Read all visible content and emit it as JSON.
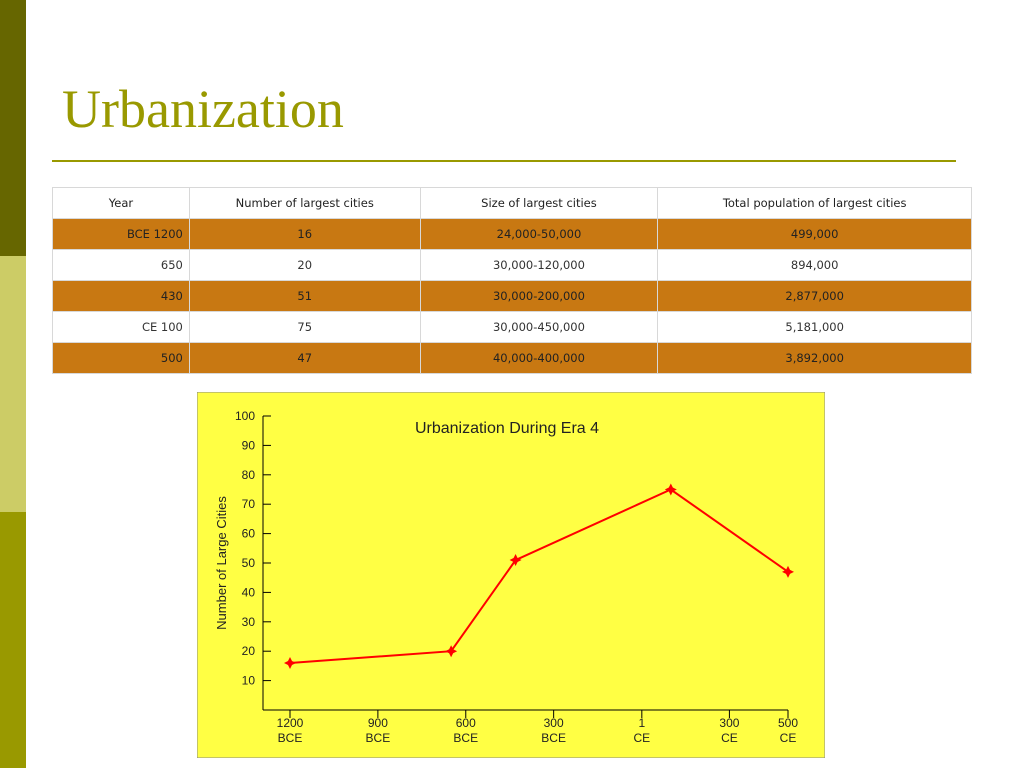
{
  "slide": {
    "title": "Urbanization",
    "accent": "#999900",
    "row_highlight_color": "#c87812"
  },
  "table": {
    "headers": [
      "Year",
      "Number of largest cities",
      "Size of largest cities",
      "Total population of largest cities"
    ],
    "rows": [
      [
        "BCE 1200",
        "16",
        "24,000-50,000",
        "499,000"
      ],
      [
        "650",
        "20",
        "30,000-120,000",
        "894,000"
      ],
      [
        "430",
        "51",
        "30,000-200,000",
        "2,877,000"
      ],
      [
        "CE 100",
        "75",
        "30,000-450,000",
        "5,181,000"
      ],
      [
        "500",
        "47",
        "40,000-400,000",
        "3,892,000"
      ]
    ]
  },
  "chart_data": {
    "type": "line",
    "title": "Urbanization During Era 4",
    "xlabel": "",
    "ylabel": "Number of Large Cities",
    "background": "#ffff44",
    "line_color": "#ff0000",
    "ylim": [
      0,
      100
    ],
    "yticks": [
      10,
      20,
      30,
      40,
      50,
      60,
      70,
      80,
      90,
      100
    ],
    "xlim": [
      -1200,
      500
    ],
    "xticks": [
      {
        "value": -1200,
        "label1": "1200",
        "label2": "BCE"
      },
      {
        "value": -900,
        "label1": "900",
        "label2": "BCE"
      },
      {
        "value": -600,
        "label1": "600",
        "label2": "BCE"
      },
      {
        "value": -300,
        "label1": "300",
        "label2": "BCE"
      },
      {
        "value": 1,
        "label1": "1",
        "label2": "CE"
      },
      {
        "value": 300,
        "label1": "300",
        "label2": "CE"
      },
      {
        "value": 500,
        "label1": "500",
        "label2": "CE"
      }
    ],
    "series": [
      {
        "x": [
          -1200,
          -650,
          -430,
          100,
          500
        ],
        "values": [
          16,
          20,
          51,
          75,
          47
        ]
      }
    ]
  }
}
